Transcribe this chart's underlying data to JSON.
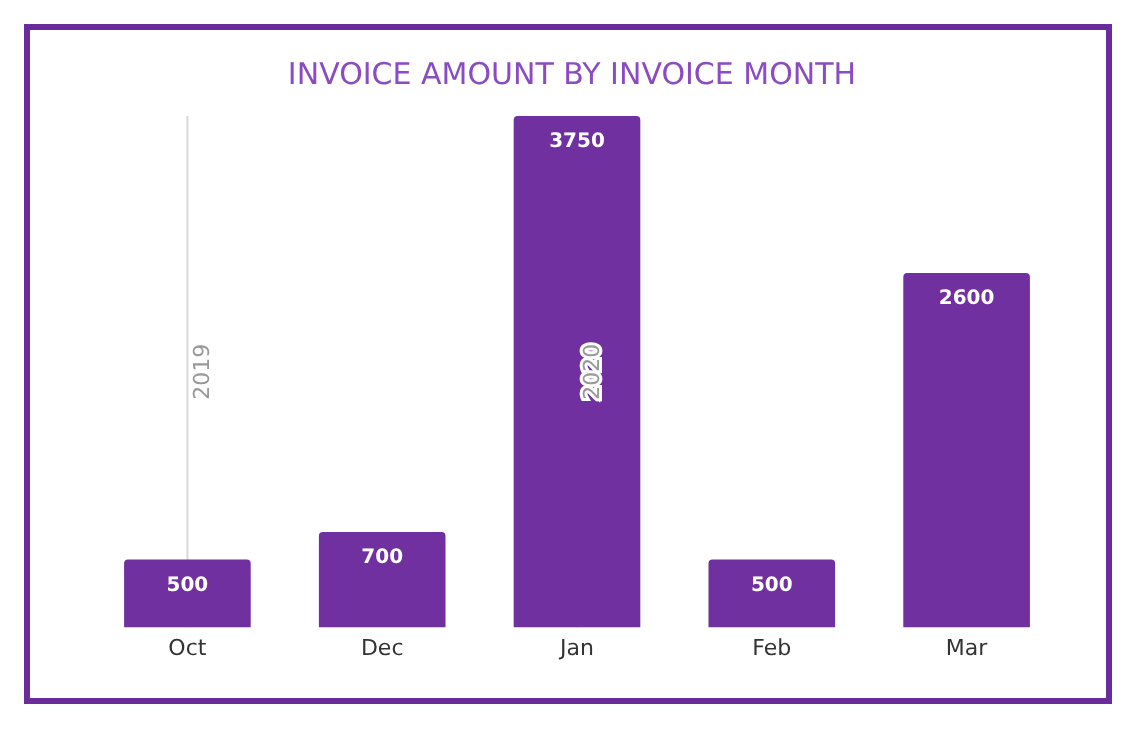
{
  "chart_data": {
    "type": "bar",
    "title": "INVOICE AMOUNT BY INVOICE MONTH",
    "categories": [
      "Oct",
      "Dec",
      "Jan",
      "Feb",
      "Mar"
    ],
    "values": [
      500,
      700,
      3750,
      500,
      2600
    ],
    "color": "#7030a0",
    "data_labels": true,
    "grid": false,
    "legend": false,
    "tick_labels": "x",
    "ref_lines": [
      {
        "axis": "x",
        "value": "Oct",
        "label": "2019",
        "color": "#d9d9d9"
      },
      {
        "axis": "x",
        "value": "Jan",
        "label": "2020",
        "color": "#d9d9d9"
      }
    ]
  }
}
